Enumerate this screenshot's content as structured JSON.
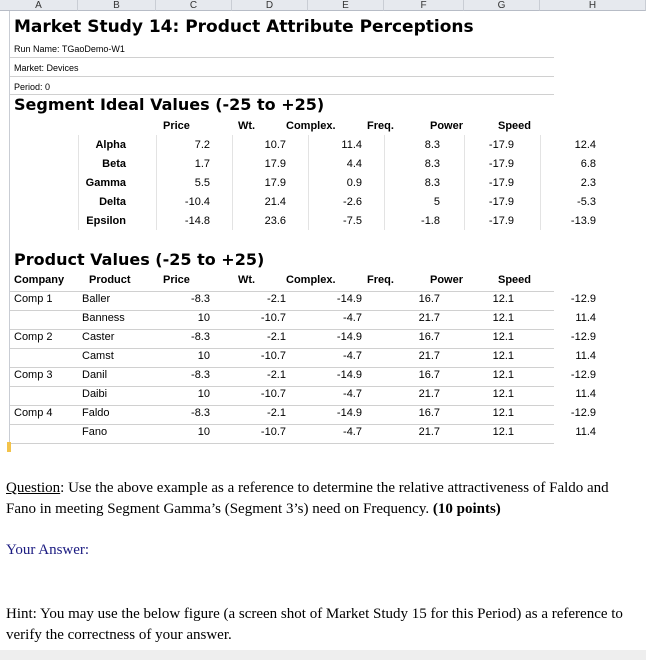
{
  "columns": [
    "A",
    "B",
    "C",
    "D",
    "E",
    "F",
    "G",
    "H"
  ],
  "title": "Market Study 14: Product Attribute Perceptions",
  "run_name": "Run Name: TGaoDemo-W1",
  "market": "Market: Devices",
  "period": "Period: 0",
  "segment": {
    "title": "Segment Ideal Values (-25 to +25)",
    "headers": [
      "Price",
      "Wt.",
      "Complex.",
      "Freq.",
      "Power",
      "Speed"
    ],
    "rows": [
      {
        "name": "Alpha",
        "values": [
          "7.2",
          "10.7",
          "11.4",
          "8.3",
          "-17.9",
          "12.4"
        ]
      },
      {
        "name": "Beta",
        "values": [
          "1.7",
          "17.9",
          "4.4",
          "8.3",
          "-17.9",
          "6.8"
        ]
      },
      {
        "name": "Gamma",
        "values": [
          "5.5",
          "17.9",
          "0.9",
          "8.3",
          "-17.9",
          "2.3"
        ]
      },
      {
        "name": "Delta",
        "values": [
          "-10.4",
          "21.4",
          "-2.6",
          "5",
          "-17.9",
          "-5.3"
        ]
      },
      {
        "name": "Epsilon",
        "values": [
          "-14.8",
          "23.6",
          "-7.5",
          "-1.8",
          "-17.9",
          "-13.9"
        ]
      }
    ]
  },
  "product": {
    "title": "Product Values (-25 to +25)",
    "headers": [
      "Company",
      "Product",
      "Price",
      "Wt.",
      "Complex.",
      "Freq.",
      "Power",
      "Speed"
    ],
    "rows": [
      {
        "company": "Comp 1",
        "product": "Baller",
        "values": [
          "-8.3",
          "-2.1",
          "-14.9",
          "16.7",
          "12.1",
          "-12.9"
        ]
      },
      {
        "company": "",
        "product": "Banness",
        "values": [
          "10",
          "-10.7",
          "-4.7",
          "21.7",
          "12.1",
          "11.4"
        ]
      },
      {
        "company": "Comp 2",
        "product": "Caster",
        "values": [
          "-8.3",
          "-2.1",
          "-14.9",
          "16.7",
          "12.1",
          "-12.9"
        ]
      },
      {
        "company": "",
        "product": "Camst",
        "values": [
          "10",
          "-10.7",
          "-4.7",
          "21.7",
          "12.1",
          "11.4"
        ]
      },
      {
        "company": "Comp 3",
        "product": "Danil",
        "values": [
          "-8.3",
          "-2.1",
          "-14.9",
          "16.7",
          "12.1",
          "-12.9"
        ]
      },
      {
        "company": "",
        "product": "Daibi",
        "values": [
          "10",
          "-10.7",
          "-4.7",
          "21.7",
          "12.1",
          "11.4"
        ]
      },
      {
        "company": "Comp 4",
        "product": "Faldo",
        "values": [
          "-8.3",
          "-2.1",
          "-14.9",
          "16.7",
          "12.1",
          "-12.9"
        ]
      },
      {
        "company": "",
        "product": "Fano",
        "values": [
          "10",
          "-10.7",
          "-4.7",
          "21.7",
          "12.1",
          "11.4"
        ]
      }
    ]
  },
  "question": {
    "label": "Question",
    "text": ": Use the above example as a reference to determine the relative attractiveness of Faldo and Fano in meeting Segment Gamma’s (Segment 3’s) need on Frequency. ",
    "points": "(10 points)"
  },
  "answer_label": "Your Answer:",
  "hint": "Hint: You may use the below figure (a screen shot of Market Study 15 for this Period) as a reference to verify the correctness of your answer."
}
